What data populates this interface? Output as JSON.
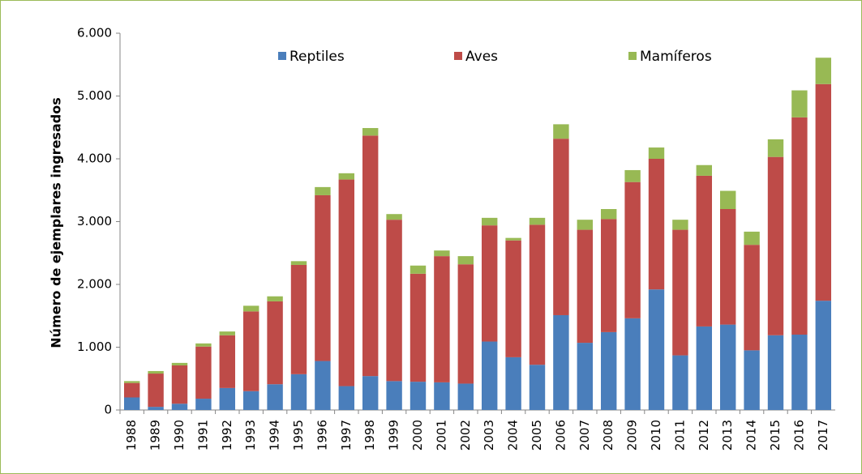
{
  "chart_data": {
    "type": "stacked_bar",
    "y_label": "Número de ejemplares ingresados",
    "categories": [
      "1988",
      "1989",
      "1990",
      "1991",
      "1992",
      "1993",
      "1994",
      "1995",
      "1996",
      "1997",
      "1998",
      "1999",
      "2000",
      "2001",
      "2002",
      "2003",
      "2004",
      "2005",
      "2006",
      "2007",
      "2008",
      "2009",
      "2010",
      "2011",
      "2012",
      "2013",
      "2014",
      "2015",
      "2016",
      "2017"
    ],
    "series": [
      {
        "name": "Reptiles",
        "color": "#4a7ebb",
        "values": [
          200,
          50,
          100,
          180,
          350,
          300,
          410,
          570,
          780,
          380,
          540,
          460,
          450,
          440,
          420,
          1090,
          840,
          720,
          1510,
          1070,
          1240,
          1460,
          1920,
          870,
          1330,
          1360,
          950,
          1190,
          1200,
          1740
        ]
      },
      {
        "name": "Aves",
        "color": "#be4b48",
        "values": [
          230,
          530,
          610,
          830,
          840,
          1270,
          1320,
          1740,
          2640,
          3290,
          3830,
          2570,
          1720,
          2010,
          1900,
          1850,
          1860,
          2230,
          2810,
          1800,
          1800,
          2170,
          2080,
          2000,
          2400,
          1840,
          1680,
          2840,
          3460,
          3450
        ]
      },
      {
        "name": "Mamíferos",
        "color": "#98b954",
        "values": [
          30,
          40,
          40,
          50,
          60,
          90,
          80,
          60,
          130,
          100,
          120,
          90,
          130,
          90,
          130,
          120,
          40,
          110,
          230,
          160,
          160,
          190,
          180,
          160,
          170,
          290,
          210,
          280,
          430,
          420
        ]
      }
    ],
    "ylim": [
      0,
      6000
    ],
    "yticks": [
      0,
      {
        "value": 1000,
        "label": "1.000"
      },
      {
        "value": 2000,
        "label": "2.000"
      },
      {
        "value": 3000,
        "label": "3.000"
      },
      {
        "value": 4000,
        "label": "4.000"
      },
      {
        "value": 5000,
        "label": "5.000"
      },
      {
        "value": 6000,
        "label": "6.000"
      }
    ],
    "grid": false
  }
}
